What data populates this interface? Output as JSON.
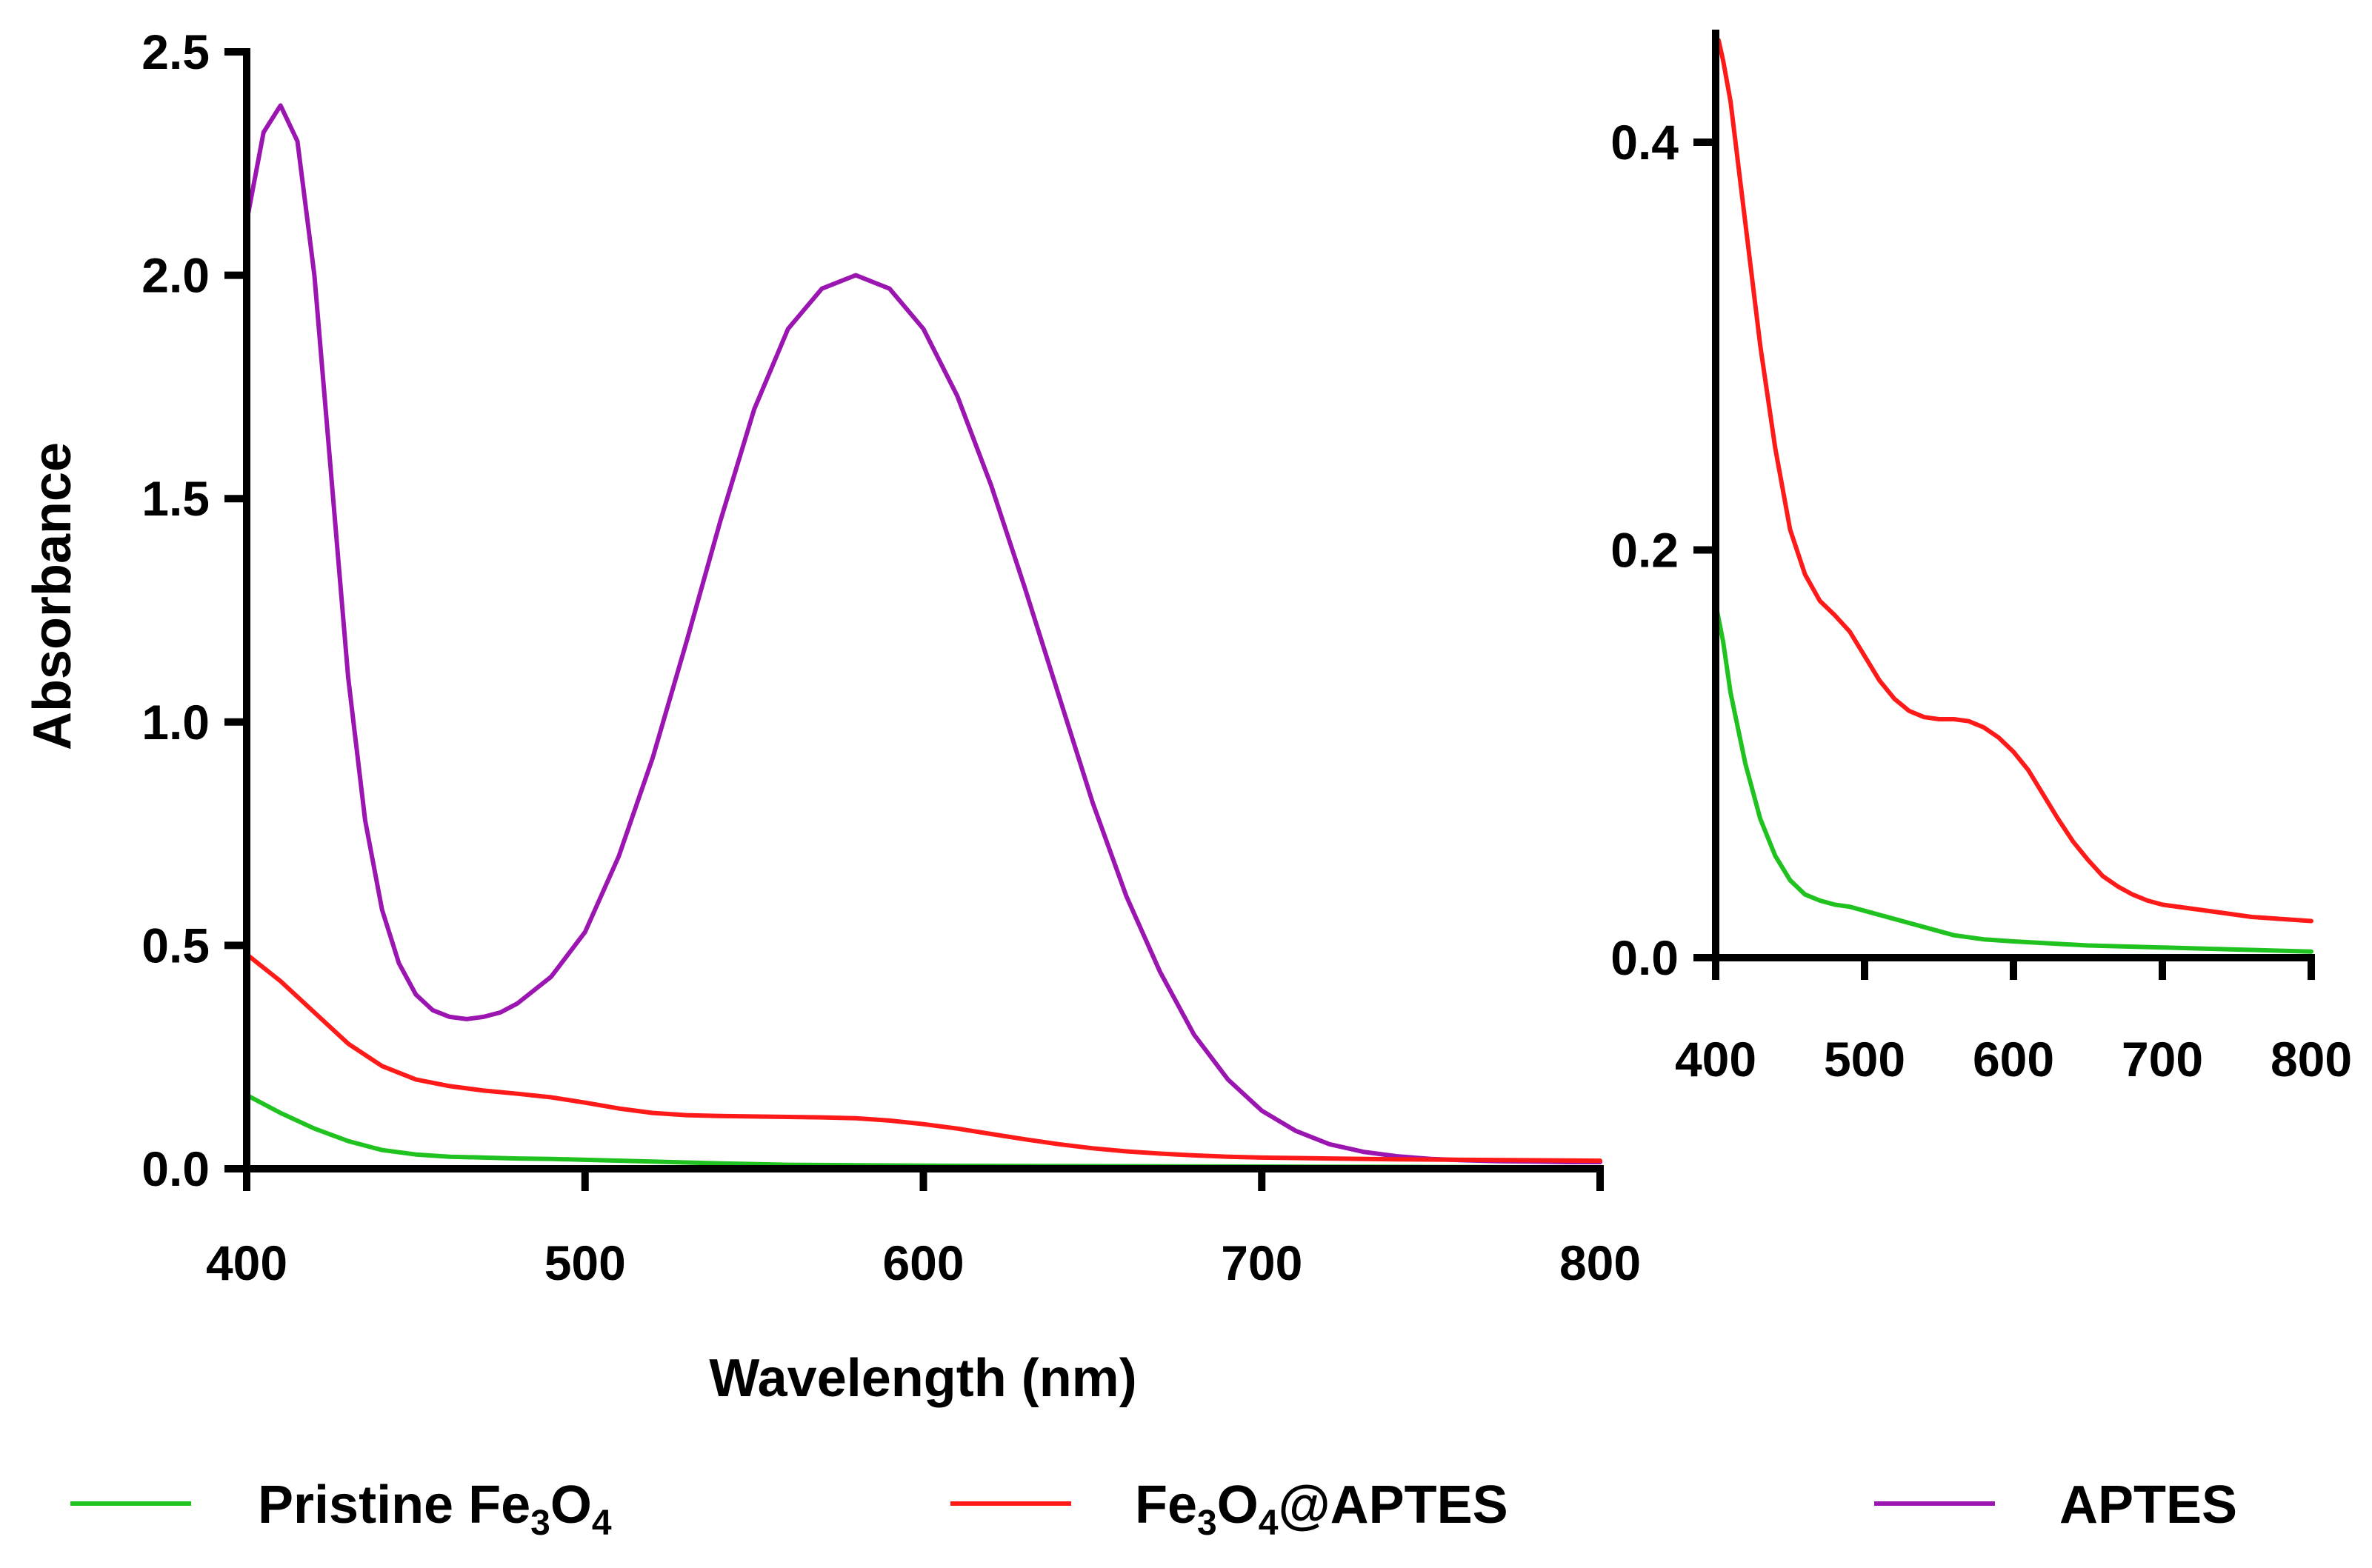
{
  "chart_data": [
    {
      "id": "main",
      "type": "line",
      "title": "",
      "xlabel": "Wavelength (nm)",
      "ylabel": "Absorbance",
      "xlim": [
        400,
        800
      ],
      "ylim": [
        0,
        2.5
      ],
      "xticks": [
        400,
        500,
        600,
        700,
        800
      ],
      "xtick_labels": [
        "400",
        "500",
        "600",
        "700",
        "800"
      ],
      "yticks": [
        0,
        0.5,
        1,
        1.5,
        2,
        2.5
      ],
      "ytick_labels": [
        "0.0",
        "0.5",
        "1.0",
        "1.5",
        "2.0",
        "2.5"
      ],
      "grid": false,
      "series": [
        {
          "name": "APTES",
          "color": "#9b15b0",
          "x": [
            400,
            405,
            410,
            415,
            420,
            425,
            430,
            435,
            440,
            445,
            450,
            455,
            460,
            465,
            470,
            475,
            480,
            490,
            500,
            510,
            520,
            530,
            540,
            550,
            560,
            570,
            580,
            590,
            600,
            610,
            620,
            630,
            640,
            650,
            660,
            670,
            680,
            690,
            700,
            710,
            720,
            730,
            740,
            750,
            760,
            770,
            780,
            790,
            800
          ],
          "y": [
            2.12,
            2.32,
            2.38,
            2.3,
            2.0,
            1.55,
            1.1,
            0.78,
            0.58,
            0.46,
            0.39,
            0.355,
            0.34,
            0.335,
            0.34,
            0.35,
            0.37,
            0.43,
            0.53,
            0.7,
            0.92,
            1.18,
            1.45,
            1.7,
            1.88,
            1.97,
            2.0,
            1.97,
            1.88,
            1.73,
            1.53,
            1.3,
            1.06,
            0.82,
            0.61,
            0.44,
            0.3,
            0.2,
            0.13,
            0.085,
            0.055,
            0.038,
            0.028,
            0.022,
            0.019,
            0.017,
            0.016,
            0.015,
            0.015
          ]
        },
        {
          "name": "Fe3O4@APTES",
          "color": "#ff1a1a",
          "x": [
            400,
            410,
            420,
            430,
            440,
            450,
            460,
            470,
            480,
            490,
            500,
            510,
            520,
            530,
            540,
            550,
            560,
            570,
            580,
            590,
            600,
            610,
            620,
            630,
            640,
            650,
            660,
            670,
            680,
            690,
            700,
            720,
            740,
            760,
            780,
            800
          ],
          "y": [
            0.48,
            0.42,
            0.35,
            0.28,
            0.23,
            0.2,
            0.185,
            0.175,
            0.168,
            0.16,
            0.148,
            0.135,
            0.125,
            0.12,
            0.118,
            0.117,
            0.116,
            0.115,
            0.113,
            0.108,
            0.1,
            0.09,
            0.078,
            0.066,
            0.055,
            0.046,
            0.039,
            0.034,
            0.03,
            0.027,
            0.025,
            0.023,
            0.021,
            0.02,
            0.019,
            0.018
          ]
        },
        {
          "name": "Pristine Fe3O4",
          "color": "#1fc21f",
          "x": [
            400,
            410,
            420,
            430,
            440,
            450,
            460,
            470,
            480,
            490,
            500,
            520,
            540,
            560,
            580,
            600,
            650,
            700,
            750,
            800
          ],
          "y": [
            0.165,
            0.125,
            0.09,
            0.062,
            0.042,
            0.032,
            0.027,
            0.025,
            0.023,
            0.022,
            0.02,
            0.016,
            0.012,
            0.009,
            0.008,
            0.007,
            0.006,
            0.005,
            0.004,
            0.003
          ]
        }
      ]
    },
    {
      "id": "inset",
      "type": "line",
      "title": "",
      "xlabel": "",
      "ylabel": "",
      "xlim": [
        400,
        800
      ],
      "ylim": [
        0,
        0.45
      ],
      "xticks": [
        400,
        500,
        600,
        700,
        800
      ],
      "xtick_labels": [
        "400",
        "500",
        "600",
        "700",
        "800"
      ],
      "yticks": [
        0,
        0.2,
        0.4
      ],
      "ytick_labels": [
        "0.0",
        "0.2",
        "0.4"
      ],
      "grid": false,
      "series": [
        {
          "name": "Fe3O4@APTES",
          "color": "#ff1a1a",
          "x": [
            402,
            405,
            410,
            420,
            430,
            440,
            450,
            460,
            470,
            480,
            490,
            500,
            510,
            520,
            530,
            540,
            550,
            560,
            570,
            580,
            590,
            600,
            610,
            620,
            630,
            640,
            650,
            660,
            670,
            680,
            690,
            700,
            720,
            740,
            760,
            780,
            800
          ],
          "y": [
            0.45,
            0.44,
            0.42,
            0.36,
            0.3,
            0.25,
            0.21,
            0.188,
            0.175,
            0.168,
            0.16,
            0.148,
            0.136,
            0.127,
            0.121,
            0.118,
            0.117,
            0.117,
            0.116,
            0.113,
            0.108,
            0.101,
            0.092,
            0.08,
            0.068,
            0.057,
            0.048,
            0.04,
            0.035,
            0.031,
            0.028,
            0.026,
            0.024,
            0.022,
            0.02,
            0.019,
            0.018
          ]
        },
        {
          "name": "Pristine Fe3O4",
          "color": "#1fc21f",
          "x": [
            401,
            405,
            410,
            420,
            430,
            440,
            450,
            460,
            470,
            480,
            490,
            500,
            510,
            520,
            540,
            560,
            580,
            600,
            650,
            700,
            750,
            800
          ],
          "y": [
            0.17,
            0.155,
            0.13,
            0.095,
            0.068,
            0.05,
            0.038,
            0.031,
            0.028,
            0.026,
            0.025,
            0.023,
            0.021,
            0.019,
            0.015,
            0.011,
            0.009,
            0.008,
            0.006,
            0.005,
            0.004,
            0.003
          ]
        }
      ]
    }
  ],
  "legend": {
    "position": "bottom",
    "items": [
      {
        "name": "Pristine Fe3O4",
        "base": "Pristine Fe",
        "sub1": "3",
        "mid": "O",
        "sub2": "4",
        "tail": "",
        "color": "#1fc21f"
      },
      {
        "name": "Fe3O4@APTES",
        "base": "Fe",
        "sub1": "3",
        "mid": "O",
        "sub2": "4",
        "tail": "@APTES",
        "color": "#ff1a1a"
      },
      {
        "name": "APTES",
        "base": "APTES",
        "sub1": "",
        "mid": "",
        "sub2": "",
        "tail": "",
        "color": "#9b15b0"
      }
    ]
  }
}
